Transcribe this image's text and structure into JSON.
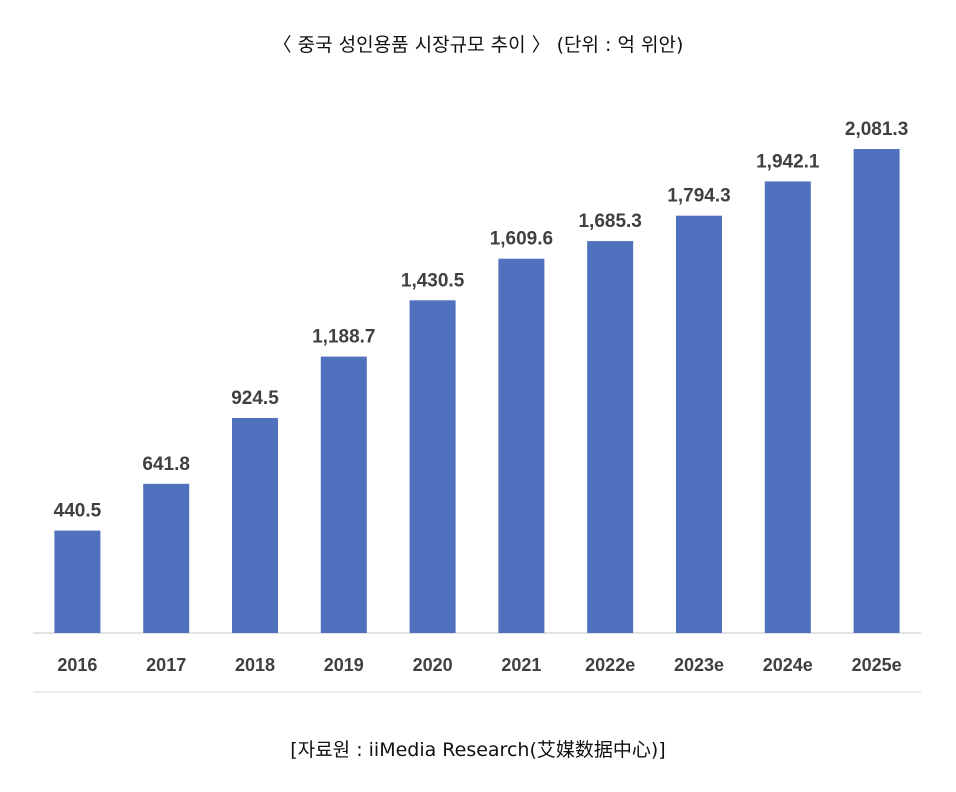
{
  "title": "〈 중국 성인용품 시장규모 추이 〉 (단위 : 억 위안)",
  "source": "[자료원 : iiMedia Research(艾媒数据中心)]",
  "colors": {
    "bar": "#4F71BE",
    "axis": "#D9D9D9",
    "text": "#404040"
  },
  "chart_data": {
    "type": "bar",
    "categories": [
      "2016",
      "2017",
      "2018",
      "2019",
      "2020",
      "2021",
      "2022e",
      "2023e",
      "2024e",
      "2025e"
    ],
    "values": [
      440.5,
      641.8,
      924.5,
      1188.7,
      1430.5,
      1609.6,
      1685.3,
      1794.3,
      1942.1,
      2081.3
    ],
    "value_labels": [
      "440.5",
      "641.8",
      "924.5",
      "1,188.7",
      "1,430.5",
      "1,609.6",
      "1,685.3",
      "1,794.3",
      "1,942.1",
      "2,081.3"
    ],
    "title": "〈 중국 성인용품 시장규모 추이 〉 (단위 : 억 위안)",
    "xlabel": "",
    "ylabel": "",
    "ylim": [
      0,
      2081.3
    ],
    "grid": false,
    "legend": "none"
  }
}
